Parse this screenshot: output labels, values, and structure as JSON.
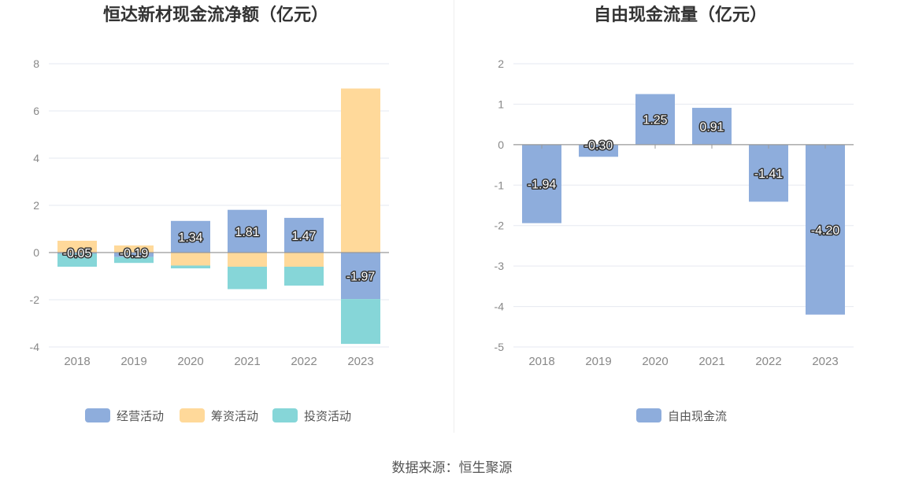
{
  "source_text": "数据来源：恒生聚源",
  "colors": {
    "operating": "#8eaddc",
    "financing": "#ffd99a",
    "investing": "#86d6d8",
    "free_cf": "#8eaddc",
    "grid": "#e6e9f0",
    "axis_text": "#888888",
    "title": "#333333"
  },
  "chart_data": [
    {
      "type": "bar",
      "stacked": true,
      "title": "恒达新材现金流净额（亿元）",
      "categories": [
        "2018",
        "2019",
        "2020",
        "2021",
        "2022",
        "2023"
      ],
      "ylim": [
        -4,
        8
      ],
      "yticks": [
        -4,
        -2,
        0,
        2,
        4,
        6,
        8
      ],
      "grid": true,
      "legend_position": "bottom",
      "series": [
        {
          "name": "经营活动",
          "values": [
            -0.05,
            -0.19,
            1.34,
            1.81,
            1.47,
            -1.97
          ],
          "labeled": true
        },
        {
          "name": "筹资活动",
          "values": [
            0.5,
            0.3,
            -0.55,
            -0.6,
            -0.6,
            6.95
          ],
          "labeled": false
        },
        {
          "name": "投资活动",
          "values": [
            -0.55,
            -0.25,
            -0.12,
            -0.95,
            -0.8,
            -1.9
          ],
          "labeled": false
        }
      ],
      "data_labels": [
        "-0.05",
        "-0.19",
        "1.34",
        "1.81",
        "1.47",
        "-1.97"
      ]
    },
    {
      "type": "bar",
      "title": "自由现金流量（亿元）",
      "categories": [
        "2018",
        "2019",
        "2020",
        "2021",
        "2022",
        "2023"
      ],
      "ylim": [
        -5,
        2
      ],
      "yticks": [
        -5,
        -4,
        -3,
        -2,
        -1,
        0,
        1,
        2
      ],
      "grid": true,
      "legend_position": "bottom",
      "series": [
        {
          "name": "自由现金流",
          "values": [
            -1.94,
            -0.3,
            1.25,
            0.91,
            -1.41,
            -4.2
          ]
        }
      ],
      "data_labels": [
        "-1.94",
        "-0.30",
        "1.25",
        "0.91",
        "-1.41",
        "-4.20"
      ]
    }
  ]
}
